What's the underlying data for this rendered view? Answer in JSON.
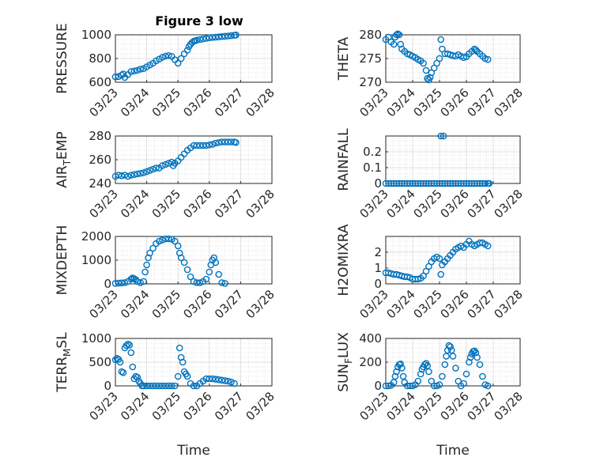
{
  "figure": {
    "title": "Figure 3 low"
  },
  "colors": {
    "marker": "#0072BD",
    "axis": "#262626",
    "grid": "#d9d9d9"
  },
  "chart_data": [
    {
      "type": "scatter",
      "title": "Figure 3 low",
      "ylabel_parts": [
        "PRESSURE"
      ],
      "xlabel": "",
      "xlim": [
        0,
        5
      ],
      "ylim": [
        600,
        1000
      ],
      "yticks": [
        600,
        800,
        1000
      ],
      "xtick_labels": [
        "03/23",
        "03/24",
        "03/25",
        "03/26",
        "03/27",
        "03/28"
      ],
      "grid": true,
      "minor_grid": true,
      "x": [
        0,
        0.1,
        0.2,
        0.25,
        0.3,
        0.4,
        0.5,
        0.6,
        0.7,
        0.8,
        0.9,
        1.0,
        1.1,
        1.2,
        1.3,
        1.4,
        1.5,
        1.6,
        1.7,
        1.8,
        1.9,
        2.0,
        2.1,
        2.2,
        2.3,
        2.35,
        2.4,
        2.45,
        2.5,
        2.55,
        2.6,
        2.7,
        2.8,
        2.9,
        3.0,
        3.1,
        3.2,
        3.3,
        3.4,
        3.5,
        3.6,
        3.7,
        3.8,
        3.85
      ],
      "y": [
        645,
        648,
        660,
        670,
        640,
        665,
        690,
        695,
        700,
        710,
        715,
        730,
        745,
        760,
        780,
        795,
        810,
        820,
        825,
        818,
        790,
        760,
        800,
        840,
        870,
        900,
        920,
        935,
        945,
        950,
        955,
        960,
        965,
        970,
        975,
        978,
        980,
        982,
        985,
        988,
        990,
        993,
        996,
        998
      ]
    },
    {
      "type": "scatter",
      "ylabel_parts": [
        "THETA"
      ],
      "xlabel": "",
      "xlim": [
        0,
        5
      ],
      "ylim": [
        270,
        280
      ],
      "yticks": [
        270,
        275,
        280
      ],
      "xtick_labels": [
        "03/23",
        "03/24",
        "03/25",
        "03/26",
        "03/27",
        "03/28"
      ],
      "grid": true,
      "minor_grid": true,
      "x": [
        0,
        0.1,
        0.2,
        0.3,
        0.35,
        0.4,
        0.45,
        0.5,
        0.55,
        0.6,
        0.7,
        0.8,
        0.9,
        1.0,
        1.1,
        1.2,
        1.3,
        1.4,
        1.5,
        1.55,
        1.6,
        1.65,
        1.7,
        1.8,
        1.9,
        2.0,
        2.05,
        2.1,
        2.2,
        2.3,
        2.4,
        2.5,
        2.6,
        2.7,
        2.8,
        2.9,
        3.0,
        3.1,
        3.2,
        3.3,
        3.35,
        3.4,
        3.5,
        3.6,
        3.7,
        3.8
      ],
      "y": [
        279,
        279.5,
        278.5,
        278,
        279.5,
        280,
        280.2,
        280,
        278,
        277,
        276.5,
        276,
        275.8,
        275.5,
        275.2,
        274.8,
        274.5,
        274,
        272.5,
        270.8,
        270.5,
        271,
        272,
        273,
        274,
        275,
        279,
        277,
        276,
        276,
        275.8,
        275.6,
        275.5,
        275.8,
        275.5,
        275.2,
        275.4,
        276,
        276.5,
        277,
        276.8,
        276.5,
        276,
        275.5,
        275,
        274.8
      ]
    },
    {
      "type": "scatter",
      "ylabel_parts": [
        "AIR",
        "T",
        "EMP"
      ],
      "xlabel": "",
      "xlim": [
        0,
        5
      ],
      "ylim": [
        240,
        280
      ],
      "yticks": [
        240,
        260,
        280
      ],
      "xtick_labels": [
        "03/23",
        "03/24",
        "03/25",
        "03/26",
        "03/27",
        "03/28"
      ],
      "grid": true,
      "minor_grid": true,
      "x": [
        0,
        0.1,
        0.2,
        0.3,
        0.4,
        0.5,
        0.6,
        0.7,
        0.8,
        0.9,
        1.0,
        1.1,
        1.2,
        1.3,
        1.4,
        1.5,
        1.6,
        1.7,
        1.8,
        1.85,
        1.9,
        2.0,
        2.1,
        2.2,
        2.3,
        2.4,
        2.5,
        2.6,
        2.7,
        2.8,
        2.9,
        3.0,
        3.1,
        3.2,
        3.3,
        3.4,
        3.5,
        3.6,
        3.7,
        3.8,
        3.85
      ],
      "y": [
        246,
        247,
        246.5,
        247,
        246,
        247,
        247.5,
        248,
        248.5,
        249,
        250,
        251,
        252,
        253,
        253,
        255,
        256,
        257,
        258,
        255,
        257,
        259,
        262,
        265,
        268,
        270,
        272,
        272,
        272,
        272,
        272,
        272.5,
        273,
        274,
        274.5,
        275,
        275,
        275,
        275,
        275,
        274.5
      ]
    },
    {
      "type": "scatter",
      "ylabel_parts": [
        "RAINFALL"
      ],
      "xlabel": "",
      "xlim": [
        0,
        5
      ],
      "ylim": [
        0,
        0.3
      ],
      "yticks": [
        0,
        0.1,
        0.2
      ],
      "xtick_labels": [
        "03/23",
        "03/24",
        "03/25",
        "03/26",
        "03/27",
        "03/28"
      ],
      "grid": true,
      "minor_grid": true,
      "x": [
        0,
        0.1,
        0.2,
        0.3,
        0.4,
        0.5,
        0.6,
        0.7,
        0.8,
        0.9,
        1.0,
        1.1,
        1.2,
        1.3,
        1.4,
        1.5,
        1.6,
        1.7,
        1.8,
        1.9,
        2.0,
        2.1,
        2.2,
        2.3,
        2.4,
        2.5,
        2.6,
        2.7,
        2.8,
        2.9,
        3.0,
        3.1,
        3.2,
        3.3,
        3.4,
        3.5,
        3.6,
        3.7,
        3.8,
        3.85,
        2.05,
        2.15
      ],
      "y": [
        0,
        0,
        0,
        0,
        0,
        0,
        0,
        0,
        0,
        0,
        0,
        0,
        0,
        0,
        0,
        0,
        0,
        0,
        0,
        0,
        0,
        0,
        0,
        0,
        0,
        0,
        0,
        0,
        0,
        0,
        0,
        0,
        0,
        0,
        0,
        0,
        0,
        0,
        0,
        0,
        0.3,
        0.3
      ]
    },
    {
      "type": "scatter",
      "ylabel_parts": [
        "MIXDEPTH"
      ],
      "xlabel": "",
      "xlim": [
        0,
        5
      ],
      "ylim": [
        0,
        2000
      ],
      "yticks": [
        0,
        1000,
        2000
      ],
      "xtick_labels": [
        "03/23",
        "03/24",
        "03/25",
        "03/26",
        "03/27",
        "03/28"
      ],
      "grid": true,
      "minor_grid": true,
      "x": [
        0,
        0.1,
        0.2,
        0.3,
        0.4,
        0.5,
        0.55,
        0.6,
        0.65,
        0.7,
        0.8,
        0.9,
        0.95,
        1.0,
        1.05,
        1.1,
        1.2,
        1.3,
        1.4,
        1.5,
        1.6,
        1.7,
        1.8,
        1.9,
        2.0,
        2.05,
        2.1,
        2.2,
        2.3,
        2.4,
        2.5,
        2.6,
        2.7,
        2.8,
        2.9,
        3.0,
        3.05,
        3.1,
        3.15,
        3.2,
        3.3,
        3.4,
        3.5
      ],
      "y": [
        20,
        30,
        40,
        50,
        100,
        200,
        250,
        220,
        180,
        100,
        50,
        100,
        500,
        800,
        1100,
        1300,
        1500,
        1700,
        1800,
        1850,
        1900,
        1900,
        1880,
        1800,
        1600,
        1300,
        1100,
        900,
        600,
        300,
        100,
        50,
        50,
        100,
        200,
        500,
        800,
        1000,
        1100,
        900,
        400,
        50,
        20
      ]
    },
    {
      "type": "scatter",
      "ylabel_parts": [
        "H2OMIXRA"
      ],
      "xlabel": "",
      "xlim": [
        0,
        5
      ],
      "ylim": [
        0,
        3
      ],
      "yticks": [
        0,
        1,
        2
      ],
      "xtick_labels": [
        "03/23",
        "03/24",
        "03/25",
        "03/26",
        "03/27",
        "03/28"
      ],
      "grid": true,
      "minor_grid": true,
      "x": [
        0,
        0.1,
        0.2,
        0.3,
        0.4,
        0.5,
        0.6,
        0.7,
        0.8,
        0.9,
        1.0,
        1.1,
        1.2,
        1.3,
        1.4,
        1.5,
        1.6,
        1.7,
        1.8,
        1.9,
        2.0,
        2.05,
        2.1,
        2.2,
        2.3,
        2.4,
        2.5,
        2.6,
        2.7,
        2.8,
        2.9,
        3.0,
        3.1,
        3.2,
        3.3,
        3.4,
        3.5,
        3.6,
        3.7,
        3.8
      ],
      "y": [
        0.7,
        0.7,
        0.65,
        0.6,
        0.6,
        0.55,
        0.5,
        0.45,
        0.45,
        0.4,
        0.3,
        0.3,
        0.3,
        0.35,
        0.5,
        0.8,
        1.1,
        1.4,
        1.6,
        1.7,
        1.6,
        0.6,
        1.2,
        1.4,
        1.6,
        1.8,
        2.0,
        2.2,
        2.3,
        2.4,
        2.3,
        2.5,
        2.7,
        2.5,
        2.4,
        2.5,
        2.6,
        2.6,
        2.5,
        2.4
      ]
    },
    {
      "type": "scatter",
      "ylabel_parts": [
        "TERR",
        "M",
        "SL"
      ],
      "xlabel": "Time",
      "xlim": [
        0,
        5
      ],
      "ylim": [
        0,
        1000
      ],
      "yticks": [
        0,
        500,
        1000
      ],
      "xtick_labels": [
        "03/23",
        "03/24",
        "03/25",
        "03/26",
        "03/27",
        "03/28"
      ],
      "grid": true,
      "minor_grid": true,
      "x": [
        0,
        0.05,
        0.1,
        0.15,
        0.2,
        0.25,
        0.3,
        0.35,
        0.4,
        0.45,
        0.5,
        0.55,
        0.6,
        0.65,
        0.7,
        0.75,
        0.8,
        0.85,
        0.9,
        1.0,
        1.1,
        1.2,
        1.3,
        1.4,
        1.5,
        1.6,
        1.7,
        1.8,
        1.9,
        2.0,
        2.05,
        2.1,
        2.15,
        2.2,
        2.25,
        2.3,
        2.4,
        2.5,
        2.6,
        2.7,
        2.8,
        2.9,
        3.0,
        3.1,
        3.2,
        3.3,
        3.4,
        3.5,
        3.6,
        3.7,
        3.8
      ],
      "y": [
        550,
        580,
        560,
        500,
        300,
        280,
        800,
        850,
        880,
        860,
        700,
        400,
        150,
        200,
        180,
        100,
        50,
        0,
        0,
        0,
        0,
        0,
        0,
        0,
        0,
        0,
        0,
        0,
        0,
        200,
        800,
        600,
        500,
        300,
        250,
        200,
        50,
        0,
        0,
        50,
        100,
        150,
        150,
        150,
        140,
        130,
        120,
        110,
        100,
        80,
        50
      ]
    },
    {
      "type": "scatter",
      "ylabel_parts": [
        "SUN",
        "F",
        "LUX"
      ],
      "xlabel": "Time",
      "xlim": [
        0,
        5
      ],
      "ylim": [
        0,
        400
      ],
      "yticks": [
        0,
        200,
        400
      ],
      "xtick_labels": [
        "03/23",
        "03/24",
        "03/25",
        "03/26",
        "03/27",
        "03/28"
      ],
      "grid": true,
      "minor_grid": true,
      "x": [
        0,
        0.1,
        0.2,
        0.3,
        0.35,
        0.4,
        0.45,
        0.5,
        0.55,
        0.6,
        0.65,
        0.7,
        0.8,
        0.9,
        1.0,
        1.1,
        1.2,
        1.3,
        1.35,
        1.4,
        1.45,
        1.5,
        1.55,
        1.6,
        1.7,
        1.8,
        1.9,
        2.0,
        2.1,
        2.2,
        2.25,
        2.3,
        2.35,
        2.4,
        2.45,
        2.5,
        2.6,
        2.7,
        2.8,
        2.9,
        3.0,
        3.1,
        3.15,
        3.2,
        3.25,
        3.3,
        3.35,
        3.4,
        3.5,
        3.6,
        3.7,
        3.8
      ],
      "y": [
        0,
        0,
        5,
        30,
        80,
        120,
        160,
        180,
        185,
        150,
        80,
        30,
        0,
        0,
        0,
        10,
        40,
        100,
        140,
        160,
        180,
        190,
        170,
        120,
        40,
        0,
        0,
        10,
        80,
        180,
        250,
        300,
        340,
        330,
        300,
        250,
        150,
        40,
        0,
        20,
        100,
        200,
        240,
        270,
        290,
        295,
        280,
        240,
        180,
        80,
        10,
        0
      ]
    }
  ]
}
